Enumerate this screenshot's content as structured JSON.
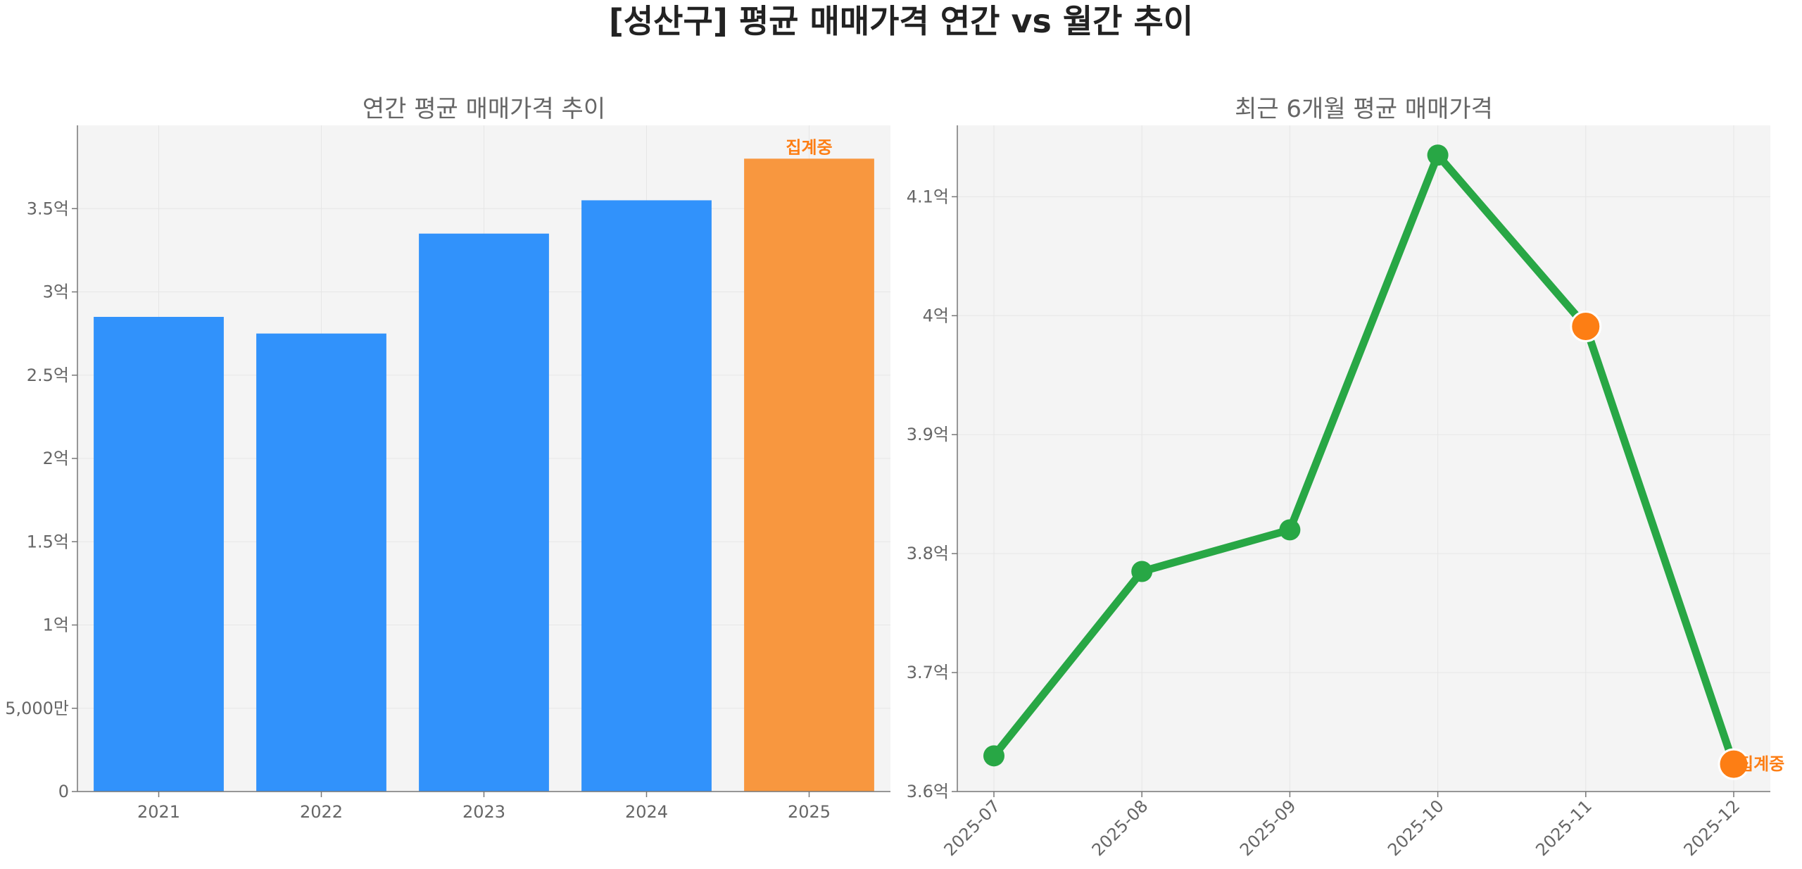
{
  "title": "[성산구] 평균 매매가격 연간 vs 월간 추이",
  "colors": {
    "bar": "#3192fb",
    "bar_partial": "#f8973f",
    "line": "#28a745",
    "highlight": "#fd7e14",
    "annotation": "#fd7e14",
    "panel_bg": "#f4f4f4",
    "grid": "#e6e6e6"
  },
  "chart_data": [
    {
      "type": "bar",
      "title": "연간 평균 매매가격 추이",
      "categories": [
        "2021",
        "2022",
        "2023",
        "2024",
        "2025"
      ],
      "values": [
        285000000,
        275000000,
        335000000,
        355000000,
        380000000
      ],
      "highlight_index": 4,
      "annotation": {
        "index": 4,
        "text": "집계중"
      },
      "ylim": [
        0,
        400000000
      ],
      "yticks": [
        {
          "value": 0,
          "label": "0"
        },
        {
          "value": 50000000,
          "label": "5,000만"
        },
        {
          "value": 100000000,
          "label": "1억"
        },
        {
          "value": 150000000,
          "label": "1.5억"
        },
        {
          "value": 200000000,
          "label": "2억"
        },
        {
          "value": 250000000,
          "label": "2.5억"
        },
        {
          "value": 300000000,
          "label": "3억"
        },
        {
          "value": 350000000,
          "label": "3.5억"
        }
      ],
      "grid": true
    },
    {
      "type": "line",
      "title": "최근 6개월 평균 매매가격",
      "categories": [
        "2025-07",
        "2025-08",
        "2025-09",
        "2025-10",
        "2025-11",
        "2025-12"
      ],
      "values": [
        363000000,
        378500000,
        382000000,
        413500000,
        399100000,
        362300000
      ],
      "highlight_indices": [
        4,
        5
      ],
      "annotation": {
        "index": 5,
        "text": "집계중"
      },
      "ylim": [
        360000000,
        416000000
      ],
      "yticks": [
        {
          "value": 360000000,
          "label": "3.6억"
        },
        {
          "value": 370000000,
          "label": "3.7억"
        },
        {
          "value": 380000000,
          "label": "3.8억"
        },
        {
          "value": 390000000,
          "label": "3.9억"
        },
        {
          "value": 400000000,
          "label": "4억"
        },
        {
          "value": 410000000,
          "label": "4.1억"
        }
      ],
      "grid": true
    }
  ]
}
